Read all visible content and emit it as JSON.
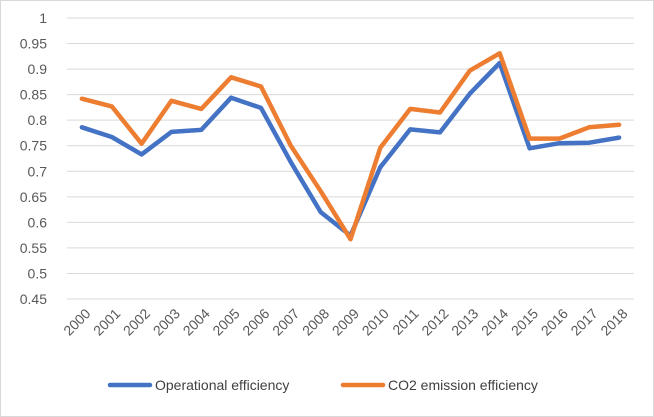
{
  "chart_data": {
    "type": "line",
    "title": "",
    "xlabel": "",
    "ylabel": "",
    "x": [
      "2000",
      "2001",
      "2002",
      "2003",
      "2004",
      "2005",
      "2006",
      "2007",
      "2008",
      "2009",
      "2010",
      "2011",
      "2012",
      "2013",
      "2014",
      "2015",
      "2016",
      "2017",
      "2018"
    ],
    "ylim": [
      0.45,
      1
    ],
    "yticks": [
      "0.45",
      "0.5",
      "0.55",
      "0.6",
      "0.65",
      "0.7",
      "0.75",
      "0.8",
      "0.85",
      "0.9",
      "0.95",
      "1"
    ],
    "grid": true,
    "legend": "bottom",
    "series": [
      {
        "name": "Operational efficiency",
        "color": "#4472C4",
        "values": [
          0.786,
          0.767,
          0.733,
          0.777,
          0.781,
          0.844,
          0.824,
          0.718,
          0.62,
          0.574,
          0.708,
          0.782,
          0.776,
          0.852,
          0.912,
          0.745,
          0.755,
          0.756,
          0.766
        ]
      },
      {
        "name": "CO2 emission efficiency",
        "color": "#ED7D31",
        "values": [
          0.842,
          0.827,
          0.754,
          0.838,
          0.822,
          0.884,
          0.866,
          0.75,
          0.661,
          0.567,
          0.746,
          0.822,
          0.815,
          0.897,
          0.931,
          0.764,
          0.764,
          0.786,
          0.791
        ]
      }
    ]
  }
}
